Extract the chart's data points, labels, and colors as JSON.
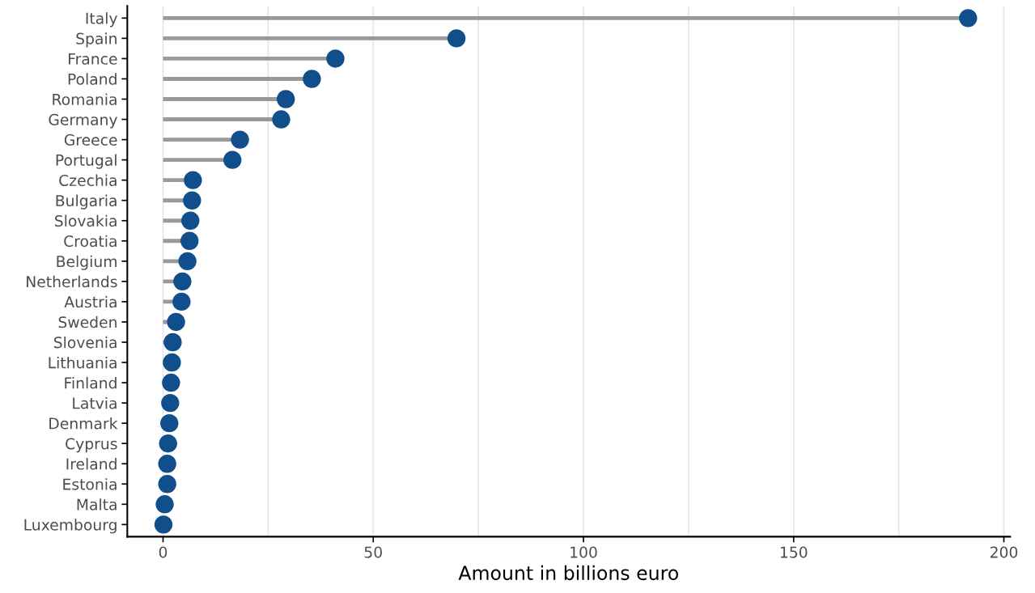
{
  "chart_data": {
    "type": "lollipop",
    "orientation": "horizontal",
    "xlabel": "Amount in billions euro",
    "categories": [
      "Italy",
      "Spain",
      "France",
      "Poland",
      "Romania",
      "Germany",
      "Greece",
      "Portugal",
      "Czechia",
      "Bulgaria",
      "Slovakia",
      "Croatia",
      "Belgium",
      "Netherlands",
      "Austria",
      "Sweden",
      "Slovenia",
      "Lithuania",
      "Finland",
      "Latvia",
      "Denmark",
      "Cyprus",
      "Ireland",
      "Estonia",
      "Malta",
      "Luxembourg"
    ],
    "values": [
      191.5,
      69.8,
      41.0,
      35.4,
      29.2,
      28.1,
      18.3,
      16.5,
      7.1,
      6.9,
      6.5,
      6.3,
      5.8,
      4.6,
      4.4,
      3.1,
      2.3,
      2.1,
      1.9,
      1.7,
      1.5,
      1.2,
      1.0,
      1.0,
      0.4,
      0.1
    ],
    "color": "#114e8c",
    "xlim": [
      -8.5,
      201.5
    ],
    "xticks": [
      0,
      {
        "value": 25,
        "label": null
      },
      50,
      {
        "value": 75,
        "label": null
      },
      100,
      {
        "value": 125,
        "label": null
      },
      150,
      {
        "value": 175,
        "label": null
      },
      200
    ],
    "grid": "x",
    "marker": "circle"
  }
}
